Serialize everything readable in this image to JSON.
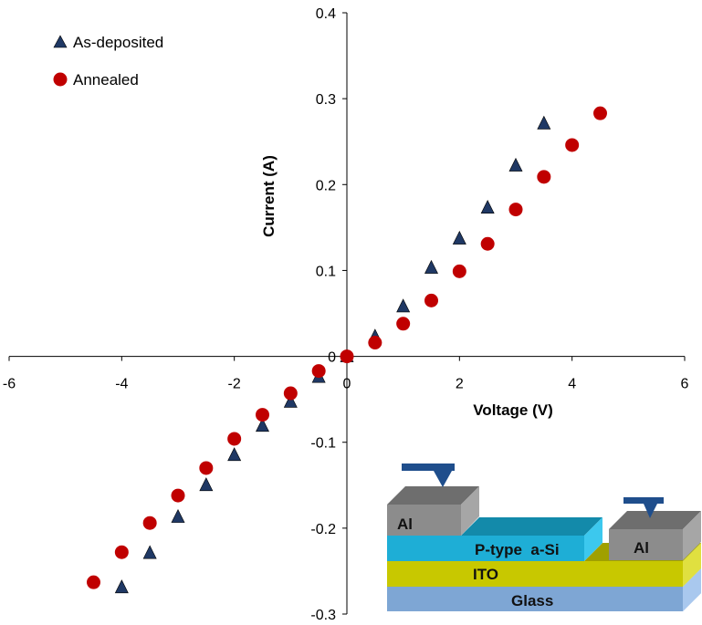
{
  "chart_data": {
    "type": "scatter",
    "xlabel": "Voltage (V)",
    "ylabel": "Current (A)",
    "xlim": [
      -6,
      6
    ],
    "ylim": [
      -0.3,
      0.4
    ],
    "xticks": [
      -6,
      -4,
      -2,
      0,
      2,
      4,
      6
    ],
    "yticks": [
      -0.3,
      -0.2,
      -0.1,
      0,
      0.1,
      0.2,
      0.3,
      0.4
    ],
    "xtick_labels": [
      "-6",
      "-4",
      "-2",
      "0",
      "2",
      "4",
      "6"
    ],
    "ytick_labels": [
      "-0.3",
      "-0.2",
      "-0.1",
      "0",
      "0.1",
      "0.2",
      "0.3",
      "0.4"
    ],
    "grid": false,
    "legend_position": "top-left",
    "series": [
      {
        "name": "As-deposited",
        "marker": "triangle",
        "color": "#1f3864",
        "x": [
          -4,
          -3.5,
          -3,
          -2.5,
          -2,
          -1.5,
          -1,
          -0.5,
          0,
          0.5,
          1,
          1.5,
          2,
          2.5,
          3,
          3.5
        ],
        "y": [
          -0.269,
          -0.229,
          -0.187,
          -0.15,
          -0.115,
          -0.081,
          -0.053,
          -0.024,
          0,
          0.023,
          0.058,
          0.103,
          0.137,
          0.173,
          0.222,
          0.271
        ]
      },
      {
        "name": "Annealed",
        "marker": "circle",
        "color": "#c00000",
        "x": [
          -4.5,
          -4,
          -3.5,
          -3,
          -2.5,
          -2,
          -1.5,
          -1,
          -0.5,
          0,
          0.5,
          1,
          1.5,
          2,
          2.5,
          3,
          3.5,
          4,
          4.5
        ],
        "y": [
          -0.263,
          -0.228,
          -0.194,
          -0.162,
          -0.13,
          -0.096,
          -0.068,
          -0.043,
          -0.017,
          0,
          0.016,
          0.038,
          0.065,
          0.099,
          0.131,
          0.171,
          0.209,
          0.246,
          0.283
        ]
      }
    ]
  },
  "inset": {
    "al_left": "Al",
    "al_right": "Al",
    "p_layer": "P-type  a-Si",
    "ito": "ITO",
    "glass": "Glass"
  }
}
